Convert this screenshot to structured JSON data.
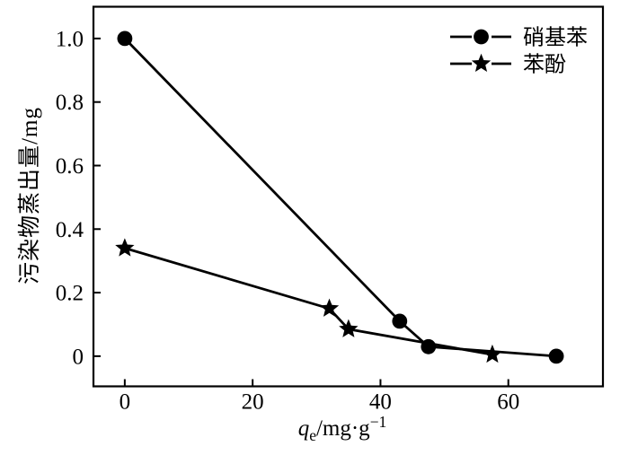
{
  "figure": {
    "background": "#ffffff",
    "ink": "#000000"
  },
  "y_axis_label": "污染物蒸出量/mg",
  "x_axis_label": {
    "variable": "q",
    "subscript": "e",
    "unit": "/mg·g",
    "exponent": "−1"
  },
  "chart_data": {
    "type": "line",
    "title": "",
    "xlabel": "qe/mg·g−1",
    "ylabel": "污染物蒸出量/mg",
    "xlim": [
      -4.9,
      74.8
    ],
    "ylim": [
      -0.095,
      1.1
    ],
    "grid": false,
    "legend_position": "inside-top-right",
    "x_ticks": [
      {
        "v": 0,
        "label": "0"
      },
      {
        "v": 20,
        "label": "20"
      },
      {
        "v": 40,
        "label": "40"
      },
      {
        "v": 60,
        "label": "60"
      }
    ],
    "y_ticks": [
      {
        "v": 1.0,
        "label": "1.0"
      },
      {
        "v": 0.8,
        "label": "0.8"
      },
      {
        "v": 0.6,
        "label": "0.6"
      },
      {
        "v": 0.4,
        "label": "0.4"
      },
      {
        "v": 0.2,
        "label": "0.2"
      },
      {
        "v": 0,
        "label": "0"
      }
    ],
    "series": [
      {
        "name": "硝基苯",
        "marker": "circle",
        "color": "#000000",
        "points": [
          [
            0,
            1.0
          ],
          [
            43,
            0.11
          ],
          [
            47.5,
            0.03
          ],
          [
            67.5,
            0.0
          ]
        ]
      },
      {
        "name": "苯酚",
        "marker": "star",
        "color": "#000000",
        "points": [
          [
            0,
            0.34
          ],
          [
            32,
            0.15
          ],
          [
            35,
            0.085
          ],
          [
            57.5,
            0.005
          ]
        ]
      }
    ]
  }
}
